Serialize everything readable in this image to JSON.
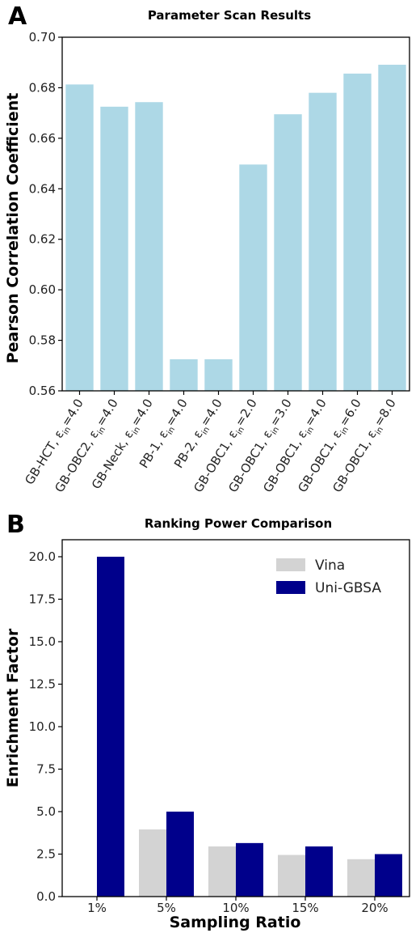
{
  "panels": {
    "a": {
      "letter": "A"
    },
    "b": {
      "letter": "B"
    }
  },
  "colors": {
    "panel_a_bar": "#add8e6",
    "vina": "#d3d3d3",
    "unigbsa": "#00008b",
    "axis": "#000000"
  },
  "chart_data": [
    {
      "type": "bar",
      "title": "Parameter Scan Results",
      "xlabel": "",
      "ylabel": "Pearson Correlation Coefficient",
      "ylim": [
        0.56,
        0.7
      ],
      "yticks": [
        "0.56",
        "0.58",
        "0.60",
        "0.62",
        "0.64",
        "0.66",
        "0.68",
        "0.70"
      ],
      "grid": false,
      "categories": [
        {
          "name": "GB-HCT",
          "eps": "4.0"
        },
        {
          "name": "GB-OBC2",
          "eps": "4.0"
        },
        {
          "name": "GB-Neck",
          "eps": "4.0"
        },
        {
          "name": "PB-1",
          "eps": "4.0"
        },
        {
          "name": "PB-2",
          "eps": "4.0"
        },
        {
          "name": "GB-OBC1",
          "eps": "2.0"
        },
        {
          "name": "GB-OBC1",
          "eps": "3.0"
        },
        {
          "name": "GB-OBC1",
          "eps": "4.0"
        },
        {
          "name": "GB-OBC1",
          "eps": "6.0"
        },
        {
          "name": "GB-OBC1",
          "eps": "8.0"
        }
      ],
      "values": [
        0.6813,
        0.6725,
        0.6743,
        0.5725,
        0.5725,
        0.6496,
        0.6695,
        0.678,
        0.6856,
        0.6891
      ]
    },
    {
      "type": "bar",
      "title": "Ranking Power Comparison",
      "xlabel": "Sampling Ratio",
      "ylabel": "Enrichment Factor",
      "ylim": [
        0,
        21
      ],
      "yticks": [
        "0.0",
        "2.5",
        "5.0",
        "7.5",
        "10.0",
        "12.5",
        "15.0",
        "17.5",
        "20.0"
      ],
      "grid": false,
      "legend_position": "top-right",
      "categories": [
        "1%",
        "5%",
        "10%",
        "15%",
        "20%"
      ],
      "series": [
        {
          "name": "Vina",
          "values": [
            0.0,
            3.95,
            2.95,
            2.45,
            2.2
          ]
        },
        {
          "name": "Uni-GBSA",
          "values": [
            20.0,
            5.0,
            3.15,
            2.95,
            2.5
          ]
        }
      ]
    }
  ]
}
